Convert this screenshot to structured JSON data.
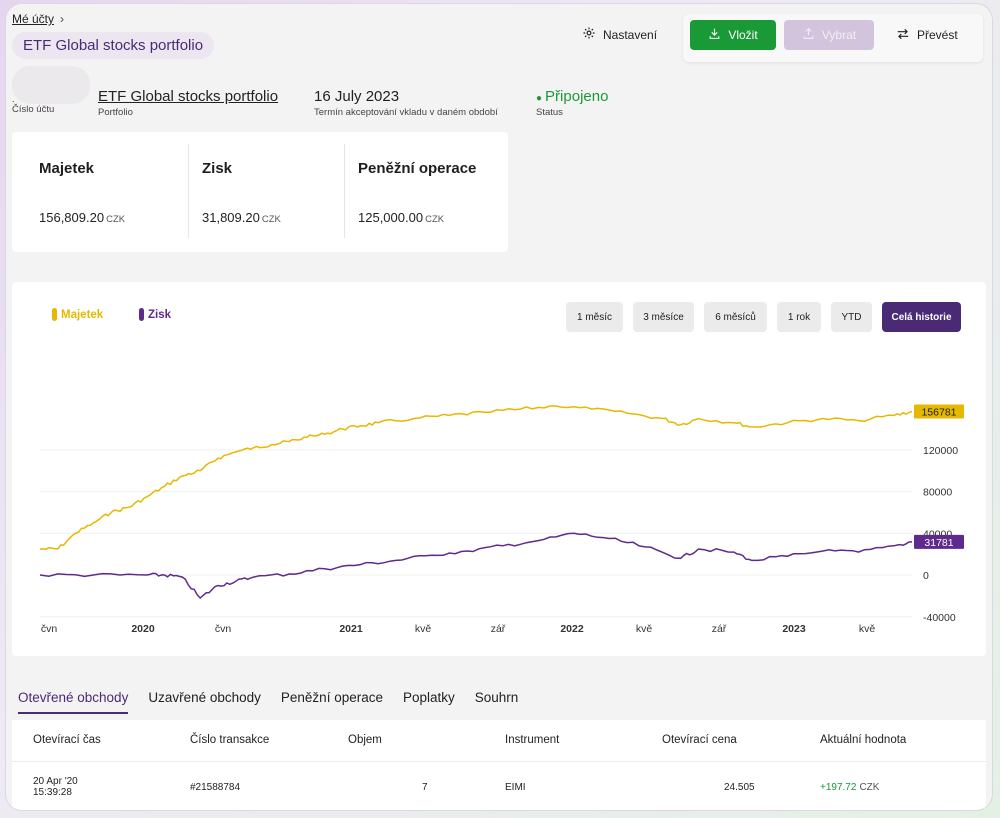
{
  "header": {
    "breadcrumb": "Mé účty",
    "title": "ETF Global stocks portfolio",
    "settings_label": "Nastavení",
    "deposit_label": "Vložit",
    "withdraw_label": "Vybrat",
    "transfer_label": "Převést"
  },
  "account": {
    "number_value": ".",
    "number_label": "Číslo účtu",
    "portfolio_value": "ETF Global stocks portfolio",
    "portfolio_label": "Portfolio",
    "date_value": "16 July 2023",
    "date_label": "Termín akceptování vkladu v daném období",
    "status_value": "Připojeno",
    "status_label": "Status",
    "status_color": "#1a9a37"
  },
  "stats": [
    {
      "label": "Majetek",
      "value": "156,809.20",
      "currency": "CZK"
    },
    {
      "label": "Zisk",
      "value": "31,809.20",
      "currency": "CZK"
    },
    {
      "label": "Peněžní operace",
      "value": "125,000.00",
      "currency": "CZK"
    }
  ],
  "chart": {
    "legend": [
      {
        "label": "Majetek",
        "color": "#e6b800"
      },
      {
        "label": "Zisk",
        "color": "#5e2a8c"
      }
    ],
    "ranges": [
      "1 měsíc",
      "3 měsíce",
      "6 měsíců",
      "1 rok",
      "YTD",
      "Celá historie"
    ],
    "active_range": "Celá historie"
  },
  "chart_data": {
    "type": "line",
    "x_ticks": [
      "čvn",
      "2020",
      "čvn",
      "2021",
      "kvě",
      "zář",
      "2022",
      "kvě",
      "zář",
      "2023",
      "kvě"
    ],
    "y_ticks": [
      120000,
      80000,
      40000,
      0,
      -40000
    ],
    "ylim": [
      -45000,
      185000
    ],
    "series": [
      {
        "name": "Majetek",
        "color": "#e6b800",
        "last_value_label": "156781",
        "points": [
          [
            "2019-06",
            25000
          ],
          [
            "2019-07",
            25000
          ],
          [
            "2019-08",
            40000
          ],
          [
            "2019-09",
            50000
          ],
          [
            "2019-10",
            60000
          ],
          [
            "2019-11",
            65000
          ],
          [
            "2019-12",
            75000
          ],
          [
            "2020-01",
            85000
          ],
          [
            "2020-02",
            95000
          ],
          [
            "2020-03",
            100000
          ],
          [
            "2020-04",
            112000
          ],
          [
            "2020-05",
            118000
          ],
          [
            "2020-06",
            122000
          ],
          [
            "2020-07",
            125000
          ],
          [
            "2020-08",
            128000
          ],
          [
            "2020-09",
            132000
          ],
          [
            "2020-10",
            135000
          ],
          [
            "2020-11",
            140000
          ],
          [
            "2020-12",
            143000
          ],
          [
            "2021-01",
            146000
          ],
          [
            "2021-03",
            150000
          ],
          [
            "2021-05",
            153000
          ],
          [
            "2021-07",
            156000
          ],
          [
            "2021-09",
            159000
          ],
          [
            "2021-11",
            162000
          ],
          [
            "2022-01",
            159000
          ],
          [
            "2022-03",
            155000
          ],
          [
            "2022-05",
            150000
          ],
          [
            "2022-06",
            144000
          ],
          [
            "2022-07",
            150000
          ],
          [
            "2022-09",
            146000
          ],
          [
            "2022-10",
            142000
          ],
          [
            "2022-12",
            146000
          ],
          [
            "2023-02",
            150000
          ],
          [
            "2023-04",
            148000
          ],
          [
            "2023-06",
            153000
          ],
          [
            "2023-07",
            156781
          ]
        ]
      },
      {
        "name": "Zisk",
        "color": "#5e2a8c",
        "last_value_label": "31781",
        "points": [
          [
            "2019-06",
            0
          ],
          [
            "2019-09",
            0
          ],
          [
            "2019-12",
            0
          ],
          [
            "2020-01",
            0
          ],
          [
            "2020-02",
            -2000
          ],
          [
            "2020-03",
            -22000
          ],
          [
            "2020-04",
            -10000
          ],
          [
            "2020-05",
            -6000
          ],
          [
            "2020-06",
            -2000
          ],
          [
            "2020-08",
            1000
          ],
          [
            "2020-10",
            6000
          ],
          [
            "2020-12",
            10000
          ],
          [
            "2021-02",
            14000
          ],
          [
            "2021-04",
            19000
          ],
          [
            "2021-06",
            23000
          ],
          [
            "2021-08",
            28000
          ],
          [
            "2021-10",
            33000
          ],
          [
            "2021-12",
            40000
          ],
          [
            "2022-02",
            35000
          ],
          [
            "2022-04",
            27000
          ],
          [
            "2022-06",
            16000
          ],
          [
            "2022-07",
            25000
          ],
          [
            "2022-09",
            22000
          ],
          [
            "2022-10",
            14000
          ],
          [
            "2022-12",
            18000
          ],
          [
            "2023-02",
            23000
          ],
          [
            "2023-04",
            22000
          ],
          [
            "2023-06",
            28000
          ],
          [
            "2023-07",
            31781
          ]
        ]
      }
    ]
  },
  "tabs": [
    {
      "label": "Otevřené obchody",
      "active": true
    },
    {
      "label": "Uzavřené obchody",
      "active": false
    },
    {
      "label": "Peněžní operace",
      "active": false
    },
    {
      "label": "Poplatky",
      "active": false
    },
    {
      "label": "Souhrn",
      "active": false
    }
  ],
  "table": {
    "headers": [
      "Otevírací čas",
      "Číslo transakce",
      "Objem",
      "Instrument",
      "Otevírací cena",
      "Aktuální hodnota"
    ],
    "rows": [
      {
        "date": "20 Apr '20",
        "time": "15:39:28",
        "transaction": "#21588784",
        "volume": "7",
        "instrument": "EIMI",
        "open_price": "24.505",
        "current_value": "+197.72",
        "currency": "CZK"
      }
    ]
  }
}
